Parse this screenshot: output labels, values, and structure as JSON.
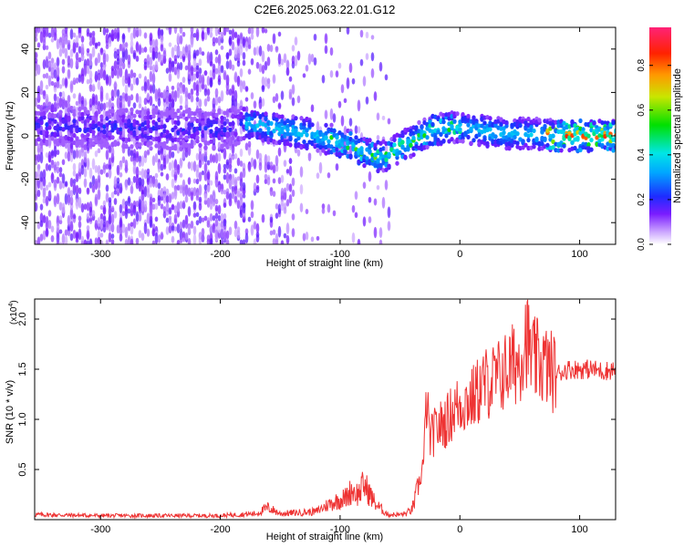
{
  "title": "C2E6.2025.063.22.01.G12",
  "chart_data": [
    {
      "type": "heatmap",
      "xlabel": "Height of straight line (km)",
      "ylabel": "Frequency (Hz)",
      "xlim": [
        -355,
        130
      ],
      "ylim": [
        -50,
        50
      ],
      "xticks": [
        -300,
        -200,
        -100,
        0,
        100
      ],
      "yticks": [
        -40,
        -20,
        0,
        20,
        40
      ],
      "ridge": {
        "x": [
          -355,
          -300,
          -250,
          -200,
          -180,
          -160,
          -140,
          -120,
          -100,
          -90,
          -80,
          -70,
          -60,
          -50,
          -40,
          -30,
          -20,
          -10,
          0,
          20,
          40,
          60,
          80,
          100,
          120,
          130
        ],
        "y": [
          5,
          4,
          3,
          3,
          6,
          4,
          2,
          0,
          -3,
          -5,
          -8,
          -10,
          -9,
          -5,
          -2,
          1,
          3,
          4,
          4,
          2,
          1,
          1,
          0,
          0,
          0,
          0
        ]
      },
      "colorbar": {
        "label": "Normalized spectral amplitude",
        "range": [
          0,
          0.97
        ],
        "ticks": [
          "0.0",
          "0.2",
          "0.4",
          "0.6",
          "0.8"
        ],
        "tick_values": [
          0,
          0.2,
          0.4,
          0.6,
          0.8
        ]
      }
    },
    {
      "type": "line",
      "xlabel": "Height of straight line (km)",
      "ylabel": "SNR (10 * v/v)",
      "multiplier_label": "(x10",
      "multiplier_exp": "4",
      "multiplier_close": ")",
      "color": "#ee3333",
      "xlim": [
        -355,
        130
      ],
      "ylim": [
        0,
        2.2
      ],
      "xticks": [
        -300,
        -200,
        -100,
        0,
        100
      ],
      "yticks": [
        "0.5",
        "1.0",
        "1.5",
        "2.0"
      ],
      "ytick_values": [
        0.5,
        1.0,
        1.5,
        2.0
      ],
      "series": [
        {
          "x": [
            -355,
            -300,
            -200,
            -170,
            -160,
            -150,
            -120,
            -110,
            -100,
            -95,
            -90,
            -85,
            -80,
            -75,
            -70,
            -60,
            -50,
            -45,
            -40,
            -35,
            -30,
            -28,
            -25,
            -20,
            -15,
            -10,
            -5,
            0,
            10,
            20,
            30,
            40,
            50,
            55,
            60,
            70,
            80,
            90,
            100,
            110,
            120,
            130
          ],
          "y": [
            0.05,
            0.04,
            0.04,
            0.06,
            0.12,
            0.06,
            0.08,
            0.15,
            0.2,
            0.22,
            0.3,
            0.25,
            0.35,
            0.25,
            0.15,
            0.05,
            0.05,
            0.06,
            0.1,
            0.3,
            0.6,
            1.2,
            0.8,
            0.9,
            0.95,
            1.0,
            1.1,
            1.15,
            1.2,
            1.35,
            1.4,
            1.5,
            1.6,
            1.85,
            1.6,
            1.55,
            1.45,
            1.5,
            1.5,
            1.5,
            1.48,
            1.5
          ]
        }
      ]
    }
  ]
}
